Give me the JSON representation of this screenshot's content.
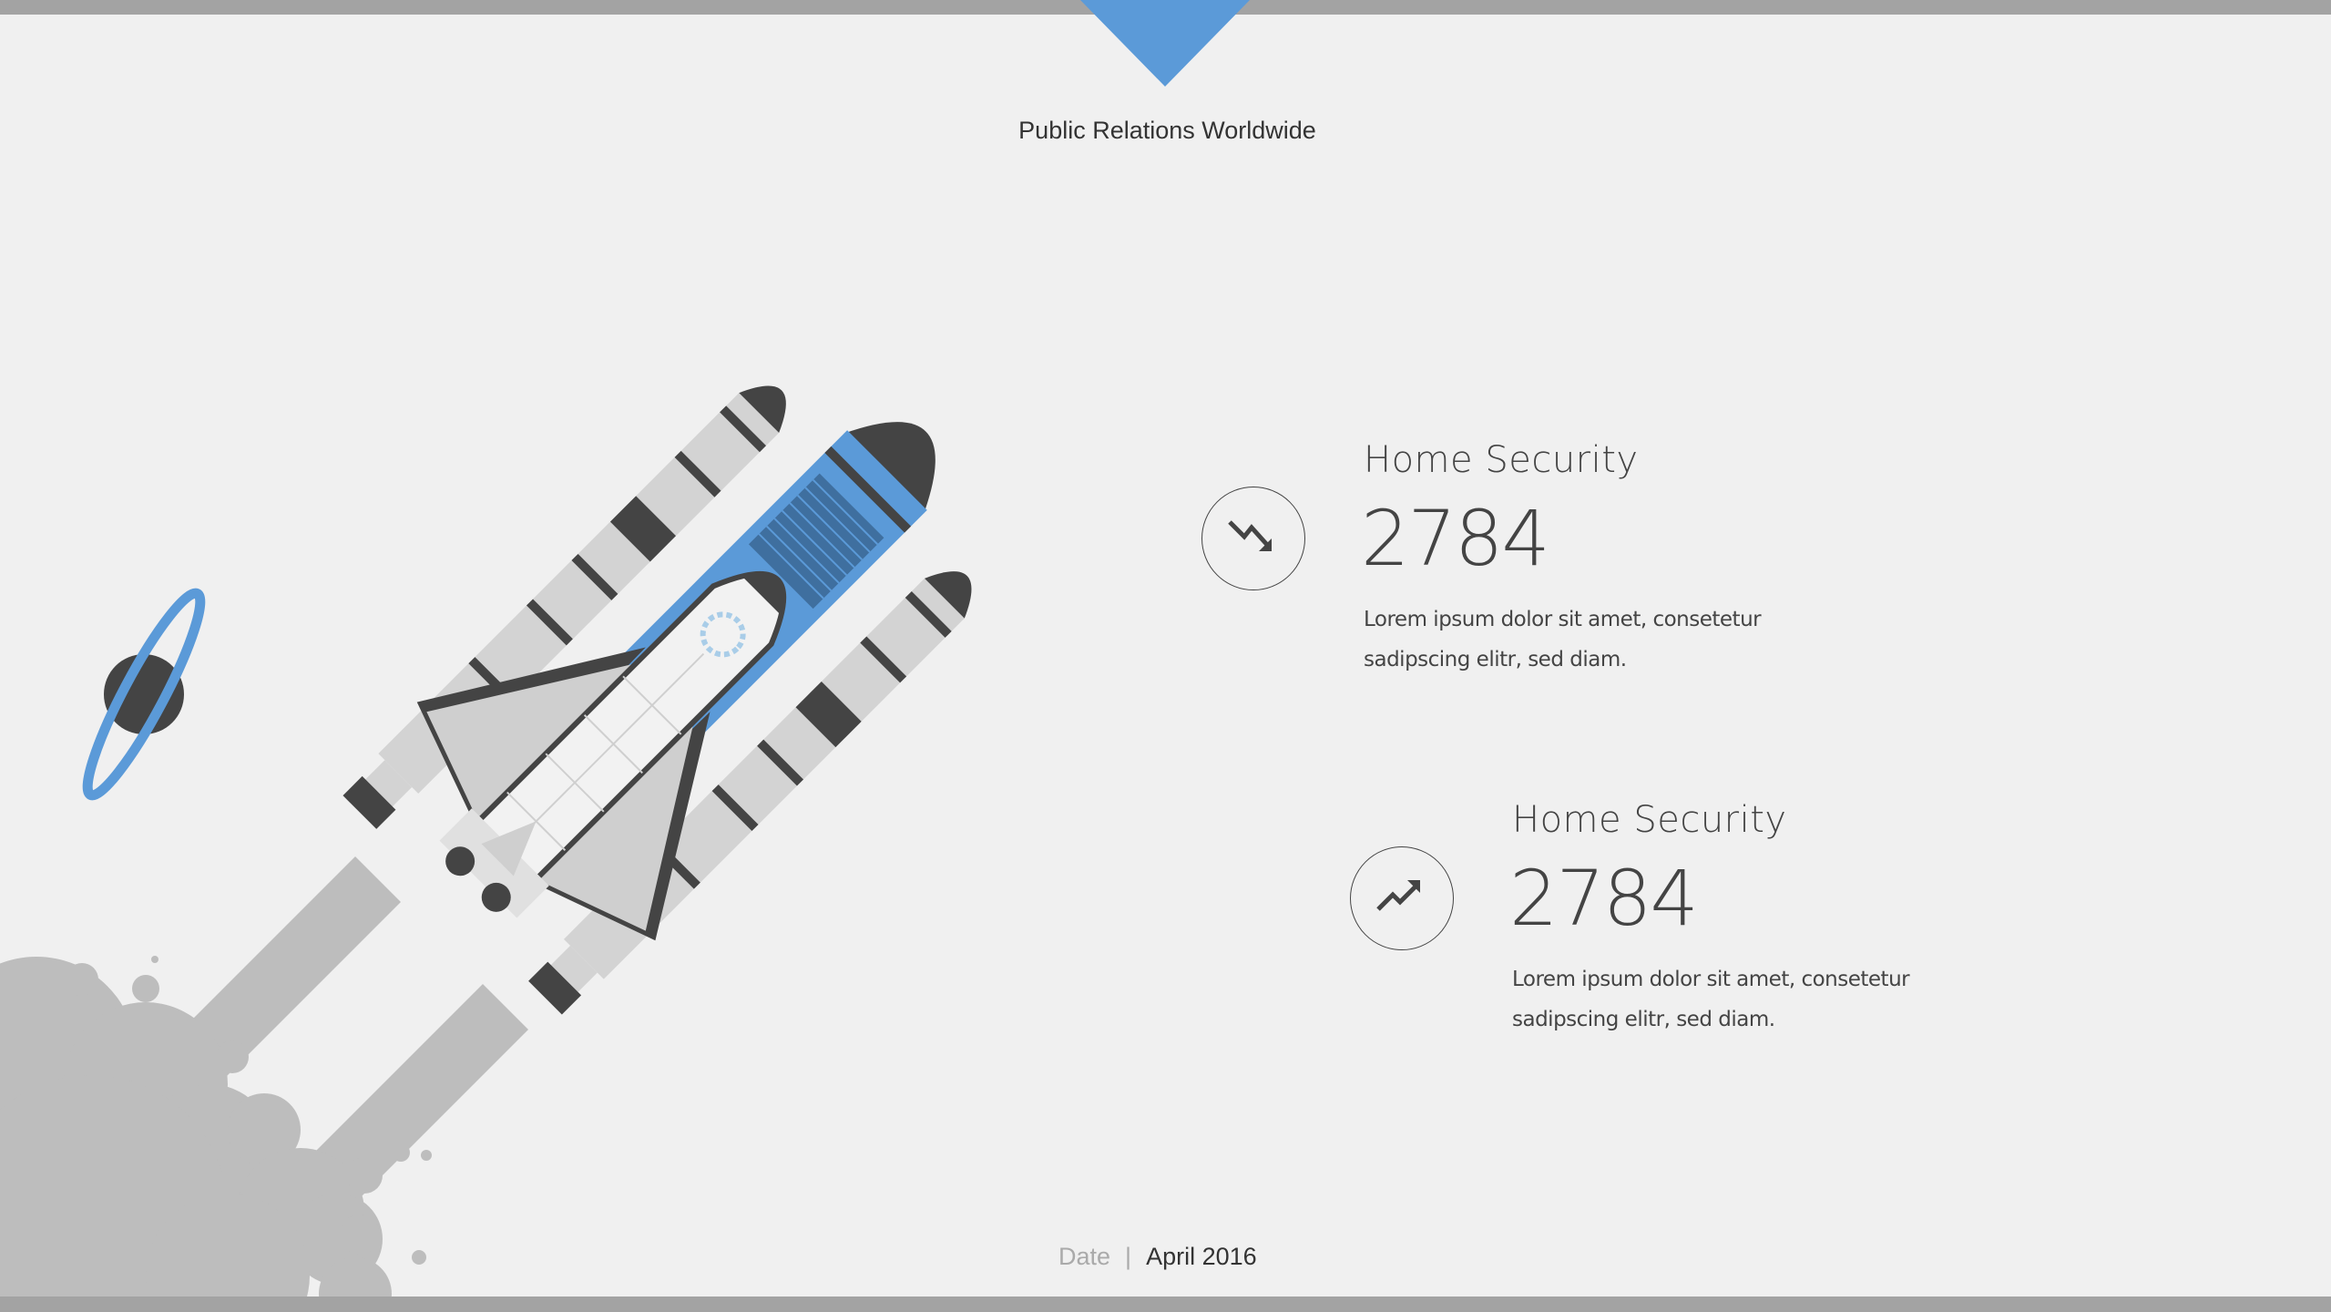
{
  "header": {
    "title": "Public Relations Worldwide"
  },
  "colors": {
    "accent": "#5b9ad8",
    "dark": "#444444",
    "smoke": "#bdbdbd",
    "bar": "#a3a3a3",
    "background": "#f0f0f0"
  },
  "stats": [
    {
      "icon": "trend-down-icon",
      "title": "Home Security",
      "value": "2784",
      "body_line1": "Lorem ipsum dolor sit amet, consetetur",
      "body_line2": "sadipscing elitr, sed diam."
    },
    {
      "icon": "trend-up-icon",
      "title": "Home Security",
      "value": "2784",
      "body_line1": "Lorem ipsum dolor sit amet, consetetur",
      "body_line2": "sadipscing elitr, sed diam."
    }
  ],
  "footer": {
    "label": "Date",
    "separator": "|",
    "value": "April 2016"
  }
}
